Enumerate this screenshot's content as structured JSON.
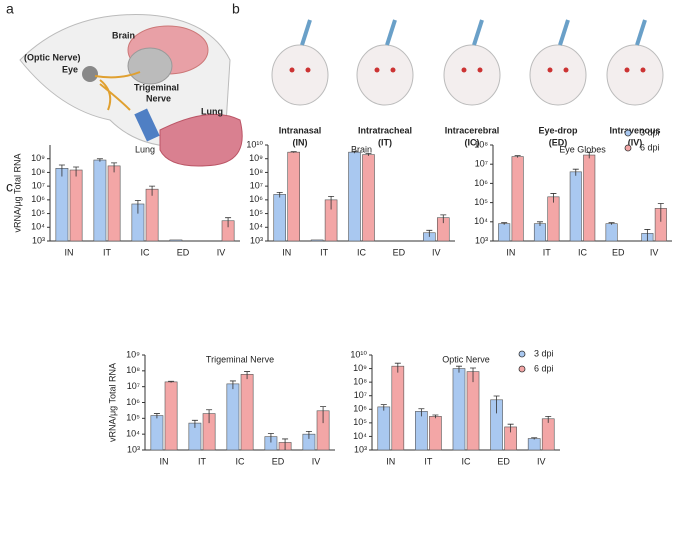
{
  "panels": {
    "a": "a",
    "b": "b",
    "c": "c"
  },
  "anatomy": {
    "brain": "Brain",
    "optic": "(Optic Nerve)",
    "eye": "Eye",
    "trigeminal": "Trigeminal",
    "nerve": "Nerve",
    "lung": "Lung"
  },
  "routes": [
    {
      "name": "Intranasal",
      "abbr": "(IN)"
    },
    {
      "name": "Intratracheal",
      "abbr": "(IT)"
    },
    {
      "name": "Intracerebral",
      "abbr": "(IC)"
    },
    {
      "name": "Eye-drop",
      "abbr": "(ED)"
    },
    {
      "name": "Intravenous",
      "abbr": "(IV)"
    }
  ],
  "chart_data": [
    {
      "type": "bar",
      "title": "Lung",
      "ylabel": "vRNA/μg Total RNA",
      "log_scale": true,
      "categories": [
        "IN",
        "IT",
        "IC",
        "ED",
        "IV"
      ],
      "ylim": [
        1000,
        10000000000
      ],
      "yticks": [
        {
          "value": 1000,
          "label": "10³"
        },
        {
          "value": 10000,
          "label": "10⁴"
        },
        {
          "value": 100000,
          "label": "10⁵"
        },
        {
          "value": 1000000,
          "label": "10⁶"
        },
        {
          "value": 10000000,
          "label": "10⁷"
        },
        {
          "value": 100000000,
          "label": "10⁸"
        },
        {
          "value": 1000000000,
          "label": "10⁹"
        }
      ],
      "series": [
        {
          "name": "3 dpi",
          "color": "#a9c8f0",
          "values": [
            200000000,
            800000000,
            500000,
            1200,
            null
          ],
          "errors": [
            150000000,
            200000000,
            400000,
            null,
            null
          ]
        },
        {
          "name": "6 dpi",
          "color": "#f3a6a6",
          "values": [
            150000000,
            300000000,
            6000000,
            null,
            30000
          ],
          "errors": [
            100000000,
            200000000,
            4000000,
            null,
            20000
          ]
        }
      ]
    },
    {
      "type": "bar",
      "title": "Brain",
      "log_scale": true,
      "categories": [
        "IN",
        "IT",
        "IC",
        "ED",
        "IV"
      ],
      "ylim": [
        1000,
        10000000000
      ],
      "yticks": [
        {
          "value": 1000,
          "label": "10³"
        },
        {
          "value": 10000,
          "label": "10⁴"
        },
        {
          "value": 100000,
          "label": "10⁵"
        },
        {
          "value": 1000000,
          "label": "10⁶"
        },
        {
          "value": 10000000,
          "label": "10⁷"
        },
        {
          "value": 100000000,
          "label": "10⁸"
        },
        {
          "value": 1000000000,
          "label": "10⁹"
        },
        {
          "value": 10000000000,
          "label": "10¹⁰"
        }
      ],
      "series": [
        {
          "name": "3 dpi",
          "color": "#a9c8f0",
          "values": [
            2500000,
            1200,
            3000000000,
            null,
            4000
          ],
          "errors": [
            1000000,
            null,
            500000000,
            null,
            2000
          ]
        },
        {
          "name": "6 dpi",
          "color": "#f3a6a6",
          "values": [
            3000000000,
            1000000,
            2000000000,
            null,
            50000
          ],
          "errors": [
            300000000,
            800000,
            400000000,
            null,
            30000
          ]
        }
      ]
    },
    {
      "type": "bar",
      "title": "Eye Globes",
      "log_scale": true,
      "categories": [
        "IN",
        "IT",
        "IC",
        "ED",
        "IV"
      ],
      "ylim": [
        1000,
        100000000
      ],
      "yticks": [
        {
          "value": 1000,
          "label": "10³"
        },
        {
          "value": 10000,
          "label": "10⁴"
        },
        {
          "value": 100000,
          "label": "10⁵"
        },
        {
          "value": 1000000,
          "label": "10⁶"
        },
        {
          "value": 10000000,
          "label": "10⁷"
        },
        {
          "value": 100000000,
          "label": "10⁸"
        }
      ],
      "series": [
        {
          "name": "3 dpi",
          "color": "#a9c8f0",
          "values": [
            8000,
            8000,
            4000000,
            8000,
            2500
          ],
          "errors": [
            1000,
            2000,
            1500000,
            1000,
            1500
          ]
        },
        {
          "name": "6 dpi",
          "color": "#f3a6a6",
          "values": [
            25000000,
            200000,
            30000000,
            null,
            50000
          ],
          "errors": [
            3000000,
            100000,
            10000000,
            null,
            40000
          ]
        }
      ]
    },
    {
      "type": "bar",
      "title": "Trigeminal Nerve",
      "ylabel": "vRNA/μg Total RNA",
      "log_scale": true,
      "categories": [
        "IN",
        "IT",
        "IC",
        "ED",
        "IV"
      ],
      "ylim": [
        1000,
        1000000000
      ],
      "yticks": [
        {
          "value": 1000,
          "label": "10³"
        },
        {
          "value": 10000,
          "label": "10⁴"
        },
        {
          "value": 100000,
          "label": "10⁵"
        },
        {
          "value": 1000000,
          "label": "10⁶"
        },
        {
          "value": 10000000,
          "label": "10⁷"
        },
        {
          "value": 100000000,
          "label": "10⁸"
        },
        {
          "value": 1000000000,
          "label": "10⁹"
        }
      ],
      "series": [
        {
          "name": "3 dpi",
          "color": "#a9c8f0",
          "values": [
            150000,
            50000,
            15000000,
            7000,
            10000
          ],
          "errors": [
            50000,
            25000,
            8000000,
            4000,
            5000
          ]
        },
        {
          "name": "6 dpi",
          "color": "#f3a6a6",
          "values": [
            20000000,
            200000,
            60000000,
            3000,
            300000
          ],
          "errors": [
            2000000,
            150000,
            30000000,
            2000,
            250000
          ]
        }
      ]
    },
    {
      "type": "bar",
      "title": "Optic Nerve",
      "log_scale": true,
      "categories": [
        "IN",
        "IT",
        "IC",
        "ED",
        "IV"
      ],
      "ylim": [
        1000,
        10000000000
      ],
      "yticks": [
        {
          "value": 1000,
          "label": "10³"
        },
        {
          "value": 10000,
          "label": "10⁴"
        },
        {
          "value": 100000,
          "label": "10⁵"
        },
        {
          "value": 1000000,
          "label": "10⁶"
        },
        {
          "value": 10000000,
          "label": "10⁷"
        },
        {
          "value": 100000000,
          "label": "10⁸"
        },
        {
          "value": 1000000000,
          "label": "10⁹"
        },
        {
          "value": 10000000000,
          "label": "10¹⁰"
        }
      ],
      "series": [
        {
          "name": "3 dpi",
          "color": "#a9c8f0",
          "values": [
            1500000,
            700000,
            1000000000,
            5000000,
            7000
          ],
          "errors": [
            700000,
            400000,
            500000000,
            4500000,
            1000
          ]
        },
        {
          "name": "6 dpi",
          "color": "#f3a6a6",
          "values": [
            1500000000,
            300000,
            600000000,
            50000,
            200000
          ],
          "errors": [
            1000000000,
            80000,
            500000000,
            30000,
            100000
          ]
        }
      ]
    }
  ]
}
